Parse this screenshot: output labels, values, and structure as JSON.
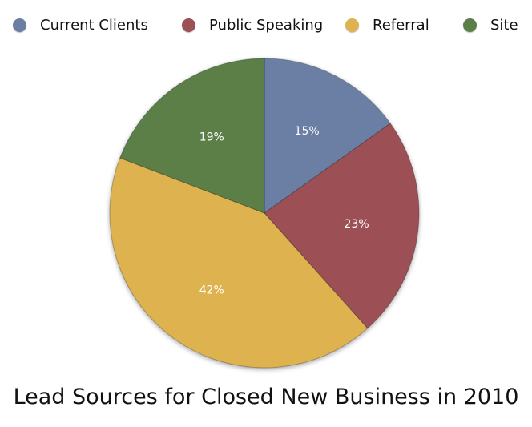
{
  "chart_data": {
    "type": "pie",
    "title": "Lead Sources for Closed New Business in 2010",
    "legend_position": "top",
    "categories": [
      "Current Clients",
      "Public Speaking",
      "Referral",
      "Site"
    ],
    "values": [
      15,
      23,
      42,
      19
    ],
    "labels": [
      "15%",
      "23%",
      "42%",
      "19%"
    ],
    "colors": [
      "#6b7fa3",
      "#9c4f55",
      "#ddb24f",
      "#5b7f46"
    ]
  }
}
